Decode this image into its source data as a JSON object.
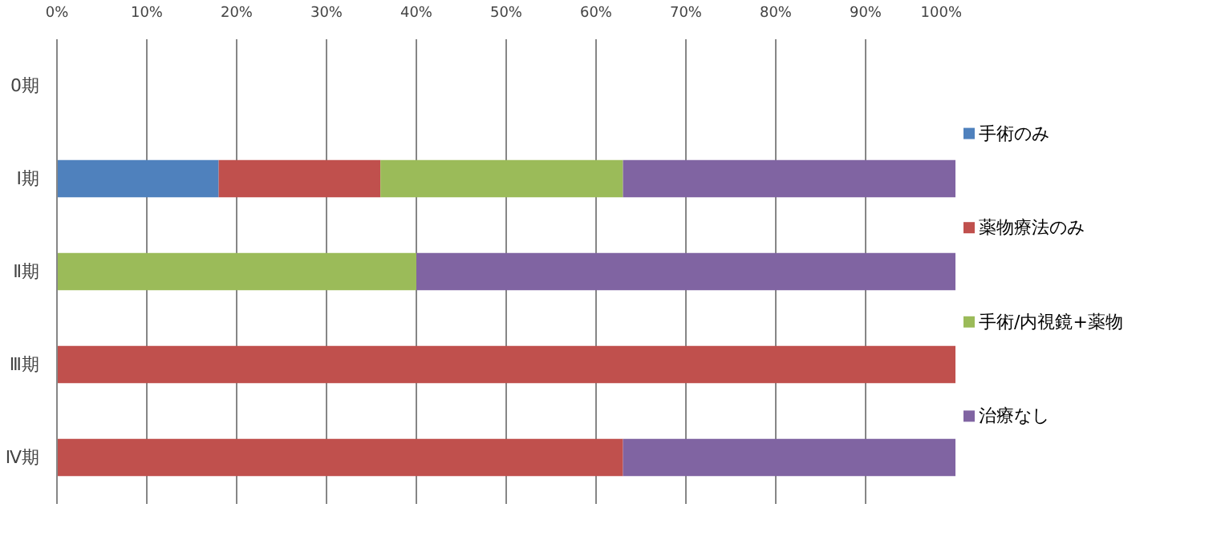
{
  "chart_data": {
    "type": "bar",
    "orientation": "horizontal",
    "stacked": true,
    "categories": [
      "0期",
      "Ⅰ期",
      "Ⅱ期",
      "Ⅲ期",
      "Ⅳ期"
    ],
    "series": [
      {
        "name": "手術のみ",
        "color": "#4f81bd",
        "values": [
          null,
          18,
          null,
          null,
          null
        ]
      },
      {
        "name": "薬物療法のみ",
        "color": "#c0504d",
        "values": [
          null,
          18,
          null,
          100,
          63
        ]
      },
      {
        "name": "手術/内視鏡+薬物",
        "color": "#9bbb59",
        "values": [
          null,
          27,
          40,
          null,
          null
        ]
      },
      {
        "name": "治療なし",
        "color": "#8064a2",
        "values": [
          null,
          37,
          60,
          null,
          37
        ]
      }
    ],
    "xlim": [
      0,
      100
    ],
    "xticks": [
      {
        "value": 0,
        "label": "0%"
      },
      {
        "value": 10,
        "label": "10%"
      },
      {
        "value": 20,
        "label": "20%"
      },
      {
        "value": 30,
        "label": "30%"
      },
      {
        "value": 40,
        "label": "40%"
      },
      {
        "value": 50,
        "label": "50%"
      },
      {
        "value": 60,
        "label": "60%"
      },
      {
        "value": 70,
        "label": "70%"
      },
      {
        "value": 80,
        "label": "80%"
      },
      {
        "value": 90,
        "label": "90%"
      },
      {
        "value": 100,
        "label": "100%"
      }
    ],
    "grid": "x",
    "legend": "right"
  }
}
